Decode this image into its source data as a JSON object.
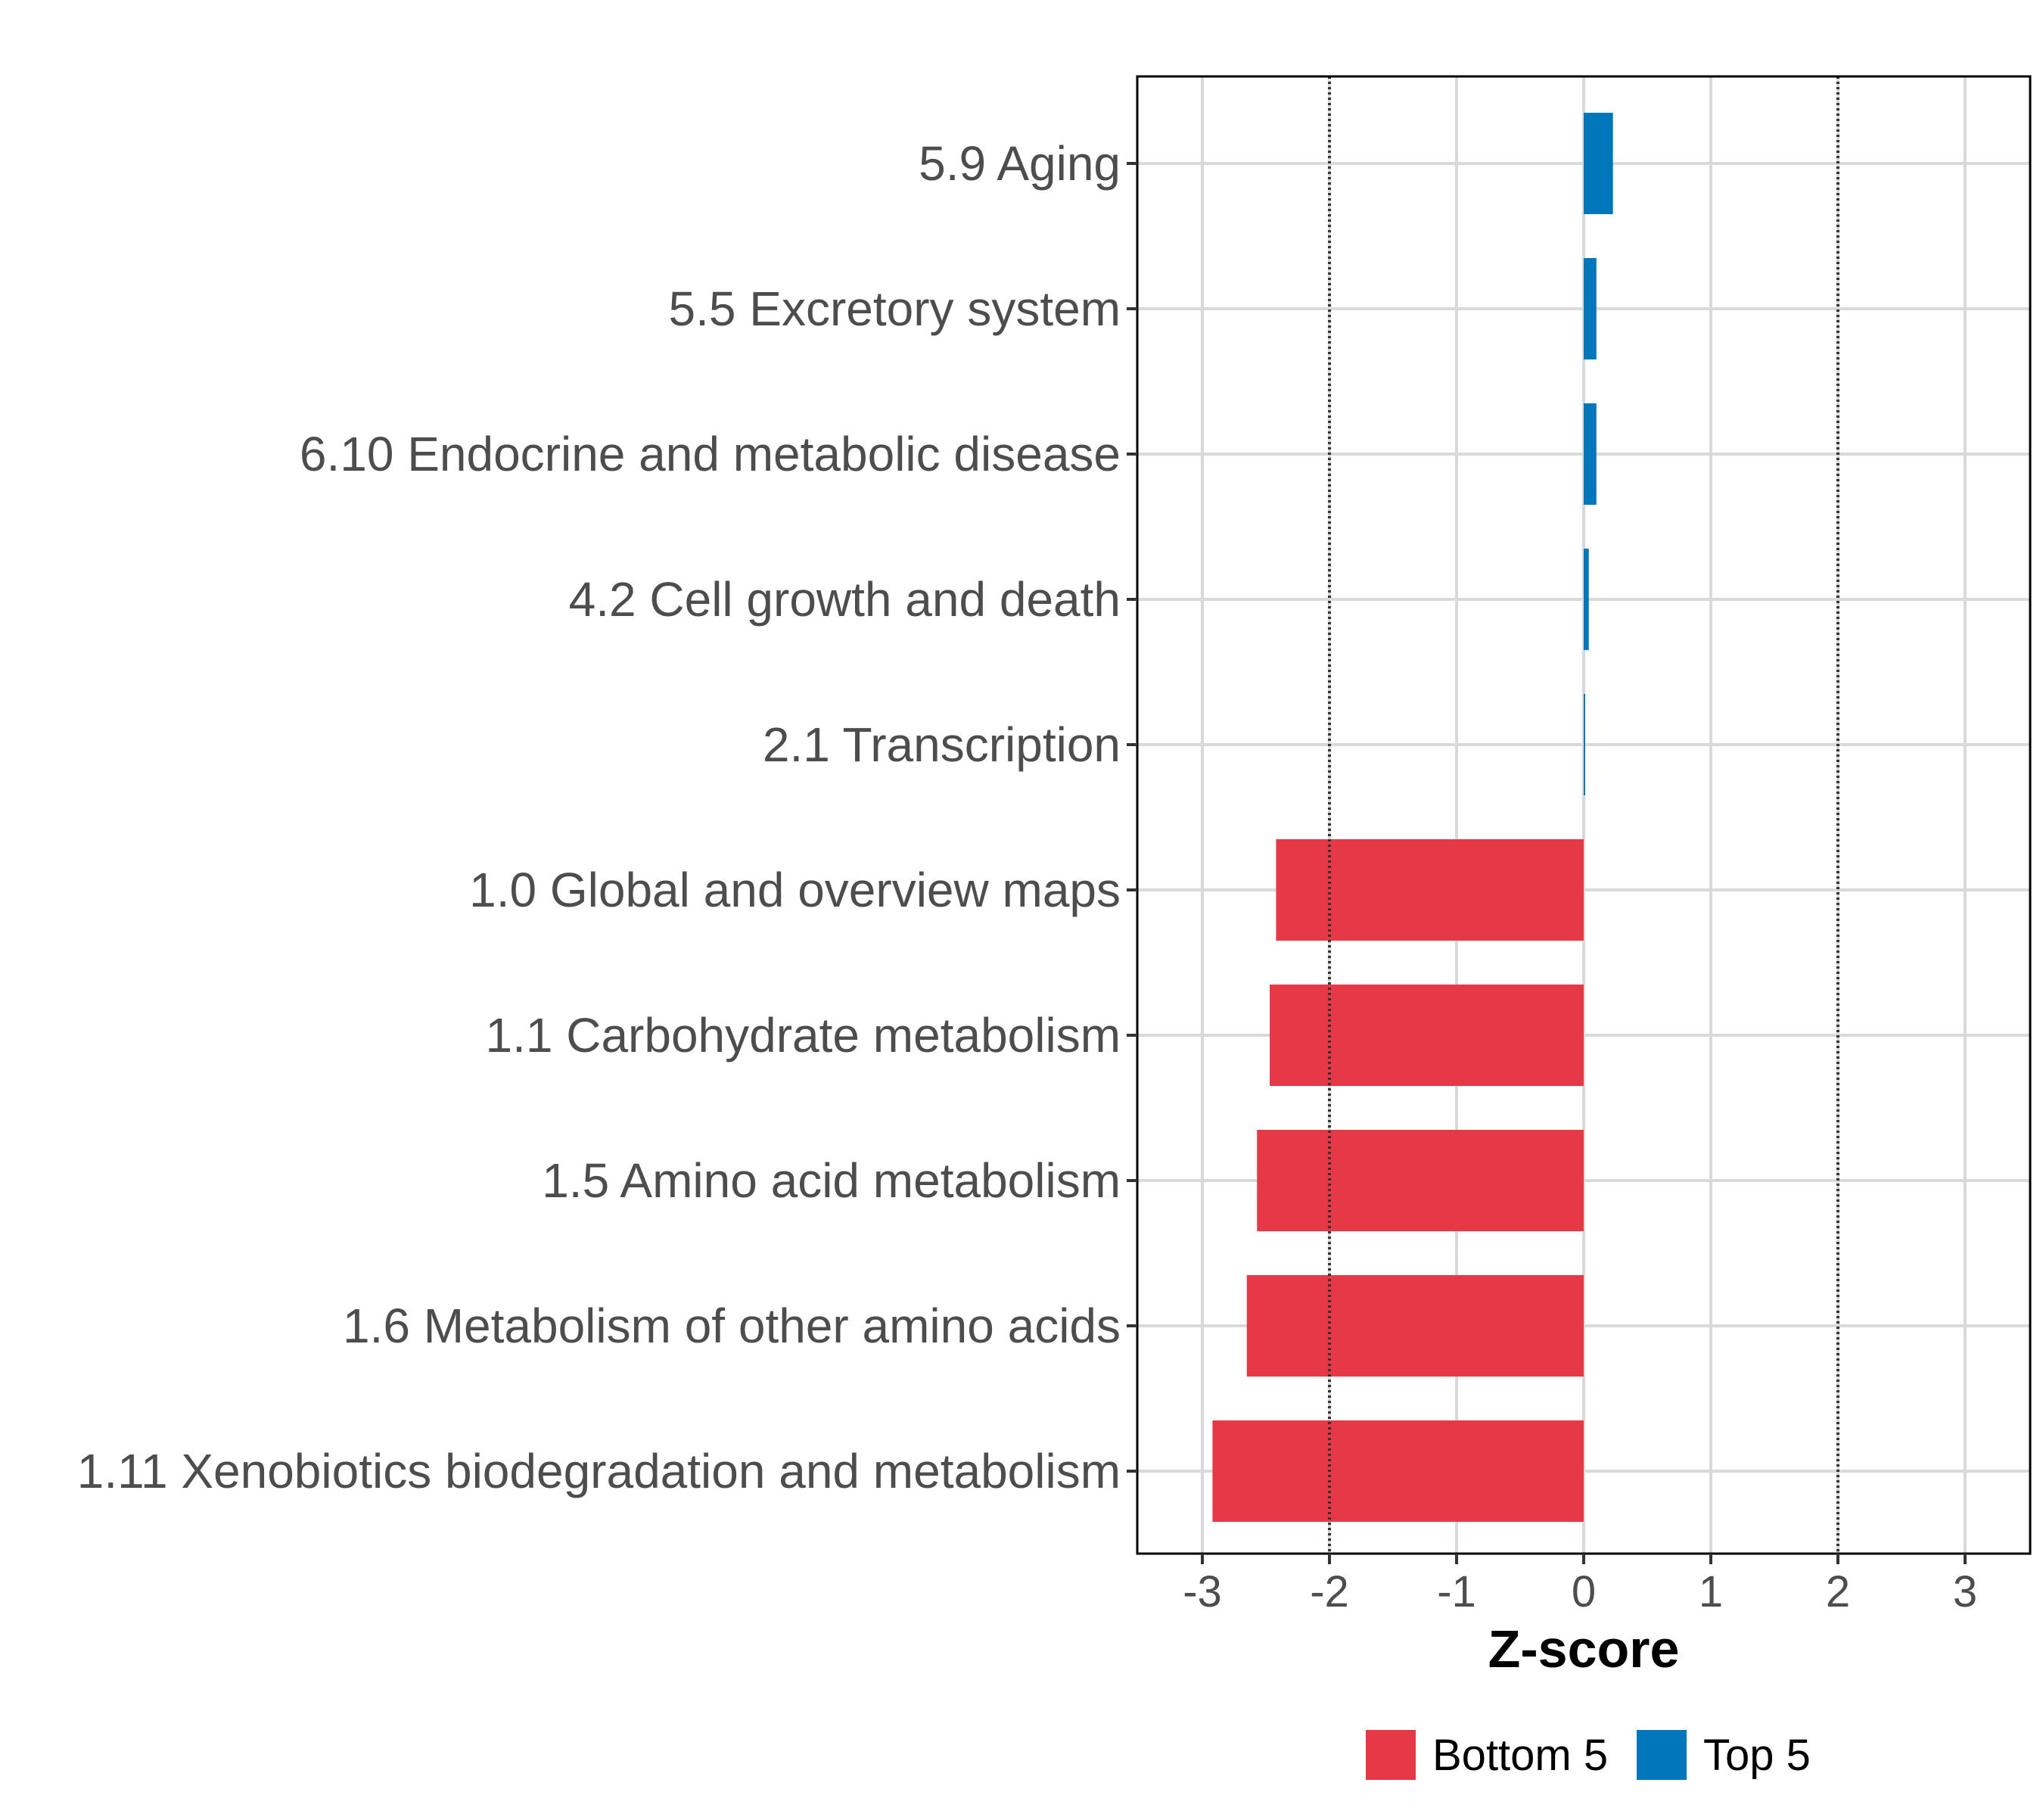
{
  "chart_data": {
    "type": "bar",
    "orientation": "horizontal",
    "categories": [
      "5.9 Aging",
      "5.5 Excretory system",
      "6.10 Endocrine and metabolic disease",
      "4.2 Cell growth and death",
      "2.1 Transcription",
      "1.0 Global and overview maps",
      "1.1 Carbohydrate metabolism",
      "1.5 Amino acid metabolism",
      "1.6 Metabolism of other amino acids",
      "1.11 Xenobiotics biodegradation and metabolism"
    ],
    "values": [
      0.23,
      0.1,
      0.1,
      0.04,
      0.01,
      -2.42,
      -2.47,
      -2.57,
      -2.65,
      -2.92
    ],
    "groups": [
      "Top 5",
      "Top 5",
      "Top 5",
      "Top 5",
      "Top 5",
      "Bottom 5",
      "Bottom 5",
      "Bottom 5",
      "Bottom 5",
      "Bottom 5"
    ],
    "xlabel": "Z-score",
    "ylabel": "",
    "xlim": [
      -3.5,
      3.5
    ],
    "xticks": [
      -3,
      -2,
      -1,
      0,
      1,
      2,
      3
    ],
    "xtick_labels": [
      "-3",
      "-2",
      "-1",
      "0",
      "1",
      "2",
      "3"
    ],
    "reference_lines": [
      -2,
      2
    ],
    "grid": true,
    "legend": {
      "placement": "bottom",
      "entries": [
        {
          "label": "Bottom 5",
          "color": "#E63946"
        },
        {
          "label": "Top 5",
          "color": "#0077BB"
        }
      ]
    }
  }
}
